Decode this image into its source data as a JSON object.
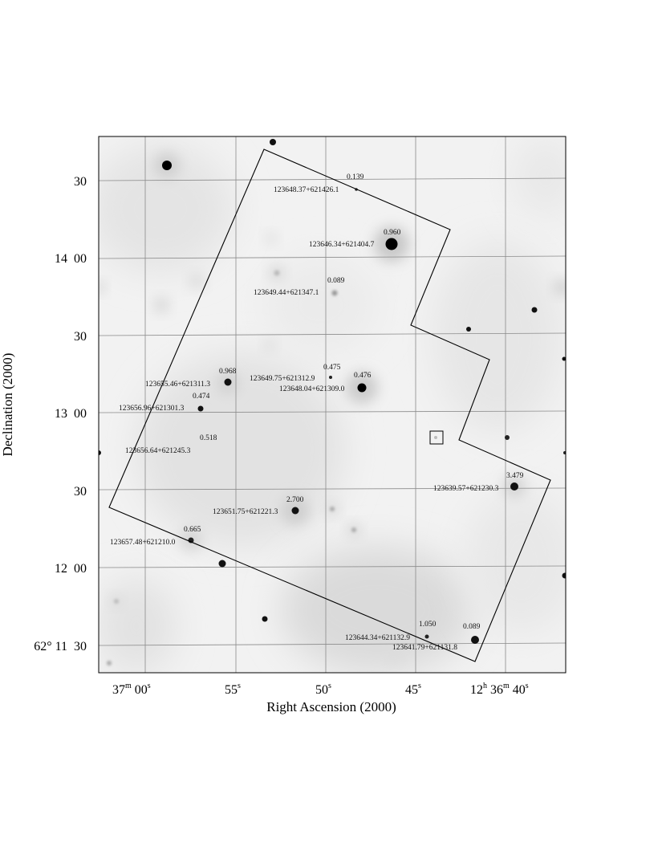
{
  "chart_data": {
    "type": "scatter",
    "xlabel": "Right Ascension (2000)",
    "ylabel": "Declination (2000)",
    "x_ticks": [
      {
        "label_main": "37",
        "label_unit": "m",
        "label_tail": " 00",
        "label_sec": "s"
      },
      {
        "label_main": "55",
        "label_unit": "",
        "label_tail": "",
        "label_sec": "s"
      },
      {
        "label_main": "50",
        "label_unit": "",
        "label_tail": "",
        "label_sec": "s"
      },
      {
        "label_main": "45",
        "label_unit": "",
        "label_tail": "",
        "label_sec": "s"
      },
      {
        "label_main": "12",
        "label_unit": "h",
        "label_tail": " 36",
        "label_sec": "m",
        "label_extra": " 40",
        "label_extra_sup": "s"
      }
    ],
    "y_ticks": [
      {
        "label": "30"
      },
      {
        "label": "14  00"
      },
      {
        "label": "30"
      },
      {
        "label": "30"
      },
      {
        "label": "13  00"
      },
      {
        "label": "30"
      },
      {
        "label": "12  00"
      },
      {
        "label": "62° 11  30"
      }
    ],
    "sources": [
      {
        "name": "123648.37+621426.1",
        "z": "0.139"
      },
      {
        "name": "123646.34+621404.7",
        "z": "0.960"
      },
      {
        "name": "123649.44+621347.1",
        "z": "0.089"
      },
      {
        "name": "123655.46+621311.3",
        "z": "0.968"
      },
      {
        "name": "123649.75+621312.9",
        "z": "0.475"
      },
      {
        "name": "123648.04+621309.0",
        "z": "0.476"
      },
      {
        "name": "123656.96+621301.3",
        "z": "0.474"
      },
      {
        "name": "123656.64+621245.3",
        "z": "0.518"
      },
      {
        "name": "123639.57+621230.3",
        "z": "3.479"
      },
      {
        "name": "123651.75+621221.3",
        "z": "2.700"
      },
      {
        "name": "123657.48+621210.0",
        "z": "0.665"
      },
      {
        "name": "123644.34+621132.9",
        "z": "1.050"
      },
      {
        "name": "123641.79+621131.8",
        "z": "0.089"
      }
    ]
  }
}
